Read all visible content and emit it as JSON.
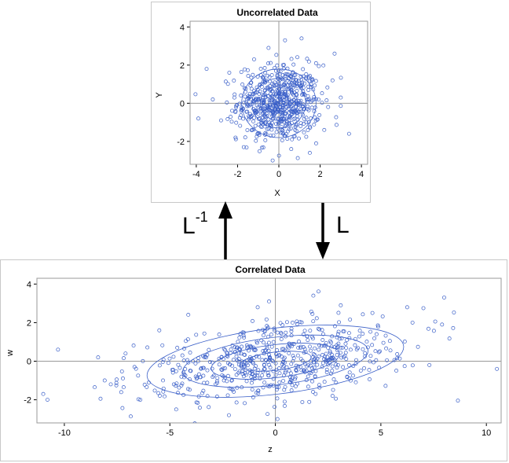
{
  "arrows": {
    "up_label": "L",
    "up_superscript": "-1",
    "down_label": "L"
  },
  "chart_data": [
    {
      "type": "scatter",
      "title": "Uncorrelated Data",
      "xlabel": "X",
      "ylabel": "Y",
      "xlim": [
        -4.3,
        4.3
      ],
      "ylim": [
        -3.2,
        4.3
      ],
      "xticks": [
        -4,
        -2,
        0,
        2,
        4
      ],
      "yticks": [
        -2,
        0,
        2,
        4
      ],
      "reference_lines": {
        "x": 0,
        "y": 0
      },
      "grid": false,
      "contours": {
        "type": "ellipse",
        "center": [
          0,
          0
        ],
        "shape": "circular",
        "radii_levels": [
          0.5,
          0.9,
          1.3,
          1.8
        ]
      },
      "series": [
        {
          "color": "#3a5fc8",
          "marker": "open-circle",
          "points": [
            [
              0.3,
              3.3
            ],
            [
              1.1,
              3.4
            ],
            [
              -0.5,
              2.9
            ],
            [
              2.7,
              2.6
            ],
            [
              -3.5,
              1.8
            ],
            [
              3.4,
              -1.6
            ],
            [
              -3.9,
              -0.8
            ],
            [
              1.5,
              -2.6
            ],
            [
              -0.3,
              -3.0
            ],
            [
              -1.2,
              2.3
            ],
            [
              1.8,
              2.1
            ],
            [
              -2.4,
              1.6
            ],
            [
              2.6,
              1.2
            ],
            [
              -2.8,
              -0.9
            ],
            [
              2.2,
              -1.4
            ],
            [
              -1.7,
              -2.3
            ],
            [
              0.6,
              -2.4
            ],
            [
              -2.1,
              -1.8
            ],
            [
              3.0,
              0.3
            ],
            [
              -3.2,
              0.2
            ]
          ]
        }
      ],
      "note_points": "plus approximately 600 additional points drawn from an uncorrelated standard bivariate normal distribution"
    },
    {
      "type": "scatter",
      "title": "Correlated Data",
      "xlabel": "z",
      "ylabel": "w",
      "xlim": [
        -11.3,
        10.7
      ],
      "ylim": [
        -3.2,
        4.3
      ],
      "xticks": [
        -10,
        -5,
        0,
        5,
        10
      ],
      "yticks": [
        -2,
        0,
        2,
        4
      ],
      "reference_lines": {
        "x": 0,
        "y": 0
      },
      "grid": false,
      "contours": {
        "type": "ellipse",
        "center": [
          0,
          0
        ],
        "shape": "tilted",
        "radii_levels": [
          0.5,
          0.9,
          1.3,
          1.8
        ]
      },
      "series": [
        {
          "color": "#3a5fc8",
          "marker": "open-circle",
          "points": [
            [
              -11.0,
              -1.7
            ],
            [
              -10.8,
              -2.0
            ],
            [
              -10.3,
              0.6
            ],
            [
              -8.4,
              0.2
            ],
            [
              -7.8,
              -1.2
            ],
            [
              8.0,
              3.3
            ],
            [
              10.5,
              -0.4
            ],
            [
              7.9,
              1.9
            ],
            [
              -0.3,
              3.1
            ],
            [
              1.8,
              3.4
            ],
            [
              -6.4,
              -2.0
            ],
            [
              6.5,
              2.0
            ],
            [
              -4.7,
              -2.5
            ],
            [
              4.6,
              2.5
            ],
            [
              -2.2,
              -2.8
            ],
            [
              0.1,
              -3.0
            ],
            [
              3.1,
              2.9
            ],
            [
              -7.1,
              0.4
            ],
            [
              7.3,
              -0.2
            ],
            [
              -5.5,
              1.6
            ]
          ]
        }
      ],
      "note_points": "plus approximately 600 additional points from a correlated bivariate normal distribution (w positively correlated with z)"
    }
  ]
}
